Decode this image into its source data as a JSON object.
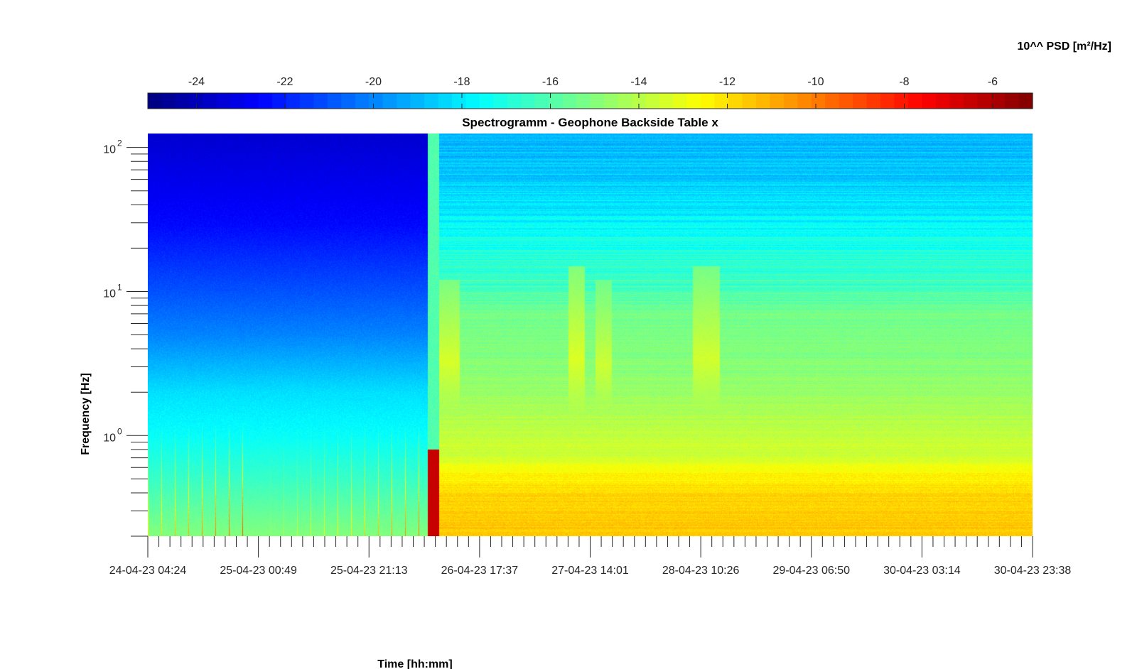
{
  "chart_data": {
    "type": "heatmap",
    "title": "Spectrogramm - Geophone Backside Table x",
    "xlabel": "Time [hh:mm]",
    "ylabel": "Frequency [Hz]",
    "y_scale": "log",
    "ylim": [
      0.2,
      125
    ],
    "x_tick_labels": [
      "24-04-23 04:24",
      "25-04-23 00:49",
      "25-04-23 21:13",
      "26-04-23 17:37",
      "27-04-23 14:01",
      "28-04-23 10:26",
      "29-04-23 06:50",
      "30-04-23 03:14",
      "30-04-23 23:38"
    ],
    "y_ticks": [
      {
        "value": 1,
        "base": "10",
        "exp": "0"
      },
      {
        "value": 10,
        "base": "10",
        "exp": "1"
      },
      {
        "value": 100,
        "base": "10",
        "exp": "2"
      }
    ],
    "colorbar": {
      "label": "10^^ PSD [m²/Hz]",
      "range": [
        -25.1,
        -5.1
      ],
      "tick_values": [
        -24,
        -22,
        -20,
        -18,
        -16,
        -14,
        -12,
        -10,
        -8,
        -6
      ],
      "tick_labels": [
        "-24",
        "-22",
        "-20",
        "-18",
        "-16",
        "-14",
        "-12",
        "-10",
        "-8",
        "-6"
      ],
      "colormap": "jet",
      "levels": 64
    },
    "time_range": [
      "24-04-23 04:24",
      "30-04-23 23:38"
    ],
    "event_time": "26-04-23 08:00",
    "periodic_spike_interval_hours": 2.5,
    "psd_profile_before_event": [
      {
        "freq": 0.2,
        "value": -15.0
      },
      {
        "freq": 0.5,
        "value": -16.5
      },
      {
        "freq": 1,
        "value": -17.5
      },
      {
        "freq": 2,
        "value": -18.2
      },
      {
        "freq": 5,
        "value": -20.0
      },
      {
        "freq": 10,
        "value": -21.0
      },
      {
        "freq": 30,
        "value": -22.5
      },
      {
        "freq": 125,
        "value": -23.5
      }
    ],
    "psd_profile_after_event": [
      {
        "freq": 0.2,
        "value": -11.5
      },
      {
        "freq": 0.4,
        "value": -11.8
      },
      {
        "freq": 0.55,
        "value": -12.5
      },
      {
        "freq": 0.7,
        "value": -13.5
      },
      {
        "freq": 1.5,
        "value": -14.2
      },
      {
        "freq": 3,
        "value": -15.0
      },
      {
        "freq": 7,
        "value": -15.3
      },
      {
        "freq": 10,
        "value": -16.3
      },
      {
        "freq": 20,
        "value": -17.0
      },
      {
        "freq": 40,
        "value": -18.2
      },
      {
        "freq": 125,
        "value": -19.2
      }
    ],
    "bursts": [
      {
        "start": "26-04-23 09:00",
        "end": "26-04-23 14:00",
        "freq_range": [
          0.9,
          12
        ],
        "value": -13.4
      },
      {
        "start": "27-04-23 10:00",
        "end": "27-04-23 13:00",
        "freq_range": [
          0.8,
          15
        ],
        "value": -13.3
      },
      {
        "start": "27-04-23 15:00",
        "end": "27-04-23 18:00",
        "freq_range": [
          0.8,
          12
        ],
        "value": -13.6
      },
      {
        "start": "28-04-23 09:00",
        "end": "28-04-23 14:00",
        "freq_range": [
          0.8,
          15
        ],
        "value": -13.5
      }
    ]
  }
}
